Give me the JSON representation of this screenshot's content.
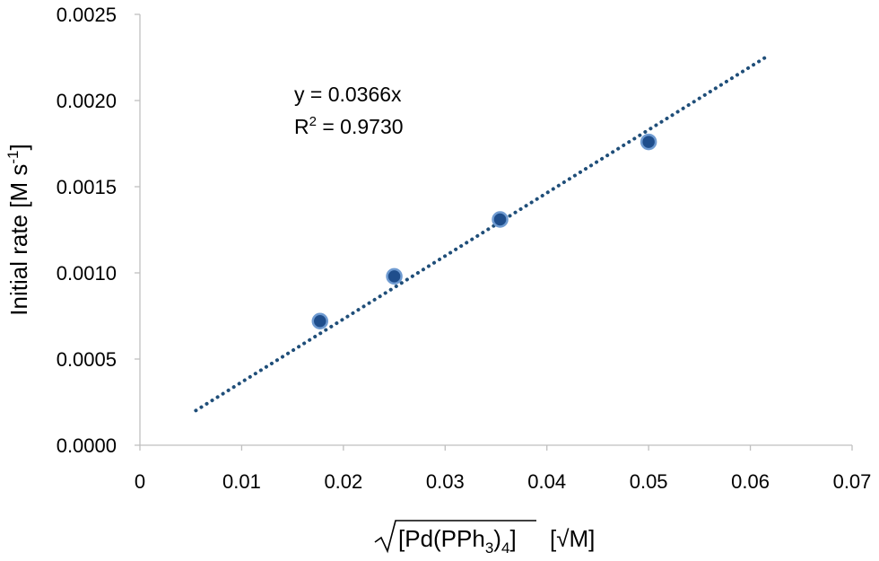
{
  "chart_data": {
    "type": "scatter",
    "title": "",
    "xlabel": "√[Pd(PPh3)4]  [√M]",
    "xlabel_parts": {
      "pre": "[Pd(PPh",
      "sub1": "3",
      "mid": ")",
      "sub2": "4",
      "post": "]",
      "unit": "[√M]"
    },
    "ylabel": "Initial rate [M s-1]",
    "ylabel_parts": {
      "base": "Initial rate [M s",
      "sup": "-1",
      "tail": "]"
    },
    "xlim": [
      0,
      0.07
    ],
    "ylim": [
      0,
      0.0025
    ],
    "x_ticks": [
      "0",
      "0.01",
      "0.02",
      "0.03",
      "0.04",
      "0.05",
      "0.06",
      "0.07"
    ],
    "y_ticks": [
      "0.0000",
      "0.0005",
      "0.0010",
      "0.0015",
      "0.0020",
      "0.0025"
    ],
    "grid": false,
    "series": [
      {
        "x": [
          0.0177,
          0.025,
          0.0354,
          0.05
        ],
        "y": [
          0.00072,
          0.00098,
          0.00131,
          0.00176
        ],
        "color": "#1F4E8C",
        "edge_color": "#6F9BD1"
      }
    ],
    "trendline": {
      "slope": 0.0366,
      "x_range": [
        0.0055,
        0.0615
      ],
      "style": "dotted",
      "color": "#1F4E79"
    },
    "annotations": {
      "equation": "y = 0.0366x",
      "r2_base": "R",
      "r2_sup": "2",
      "r2_value": " = 0.9730"
    }
  }
}
